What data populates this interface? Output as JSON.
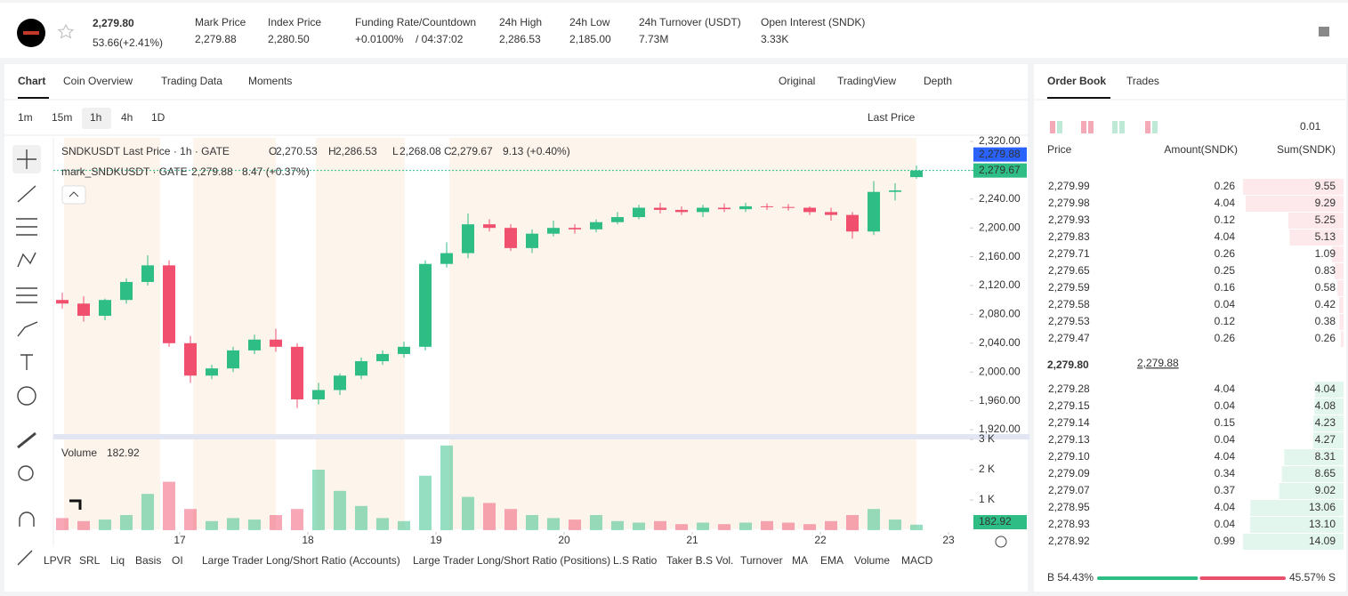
{
  "header": {
    "price": "2,279.80",
    "change": "53.66(+2.41%)",
    "stats": [
      {
        "label": "Mark Price",
        "value": "2,279.88"
      },
      {
        "label": "Index Price",
        "value": "2,280.50"
      },
      {
        "label": "Funding Rate/Countdown",
        "value": "+0.0100%",
        "extra": "/ 04:37:02"
      },
      {
        "label": "24h High",
        "value": "2,286.53"
      },
      {
        "label": "24h Low",
        "value": "2,185.00"
      },
      {
        "label": "24h Turnover (USDT)",
        "value": "7.73M"
      },
      {
        "label": "Open Interest (SNDK)",
        "value": "3.33K"
      }
    ]
  },
  "tabs": [
    "Chart",
    "Coin Overview",
    "Trading Data",
    "Moments"
  ],
  "view_tabs": [
    "Original",
    "TradingView",
    "Depth"
  ],
  "intervals": [
    "1m",
    "15m",
    "1h",
    "4h",
    "1D"
  ],
  "price_source": "Last Price",
  "indicators": [
    "LPVR",
    "SRL",
    "Liq",
    "Basis",
    "OI",
    "Large Trader Long/Short Ratio (Accounts)",
    "Large Trader Long/Short Ratio (Positions)",
    "L.S Ratio",
    "Taker B.S Vol.",
    "Turnover",
    "MA",
    "EMA",
    "Volume",
    "MACD"
  ],
  "chart_data": {
    "type": "candlestick",
    "title": "SNDKUSDT Last Price · 1h · GATE",
    "ohlc_legend": [
      {
        "key": "O",
        "value": "2,270.53"
      },
      {
        "key": "H",
        "value": "2,286.53"
      },
      {
        "key": "L",
        "value": "2,268.08"
      },
      {
        "key": "C",
        "value": "2,279.67"
      }
    ],
    "change": "9.13 (+0.40%)",
    "mark_title": "mark_SNDKUSDT · GATE",
    "mark_value": "2,279.88",
    "mark_change": "8.47 (+0.37%)",
    "x": [
      2,
      6,
      10,
      14,
      18,
      22,
      26,
      30,
      34,
      38,
      42,
      46,
      50,
      54,
      58,
      62,
      66,
      70,
      74,
      78,
      82,
      86,
      90,
      94,
      98,
      102,
      106,
      110,
      114,
      118,
      122,
      126,
      130,
      134,
      138,
      142,
      146,
      150,
      154,
      158,
      162
    ],
    "open": [
      2100,
      2095,
      2078,
      2100,
      2125,
      2148,
      2040,
      1995,
      2005,
      2030,
      2045,
      2035,
      1962,
      1975,
      1995,
      2015,
      2025,
      2035,
      2150,
      2165,
      2205,
      2200,
      2172,
      2192,
      2200,
      2198,
      2208,
      2215,
      2228,
      2225,
      2222,
      2228,
      2226,
      2230,
      2229,
      2228,
      2222,
      2218,
      2195,
      2250,
      2270.53
    ],
    "high": [
      2110,
      2105,
      2102,
      2130,
      2162,
      2155,
      2050,
      2010,
      2035,
      2052,
      2060,
      2040,
      1985,
      1998,
      2020,
      2030,
      2042,
      2155,
      2180,
      2220,
      2212,
      2205,
      2198,
      2210,
      2205,
      2212,
      2222,
      2232,
      2235,
      2230,
      2232,
      2234,
      2235,
      2234,
      2233,
      2230,
      2228,
      2222,
      2265,
      2262,
      2286.53
    ],
    "low": [
      2088,
      2070,
      2072,
      2095,
      2120,
      2035,
      1985,
      1990,
      2000,
      2025,
      2028,
      1950,
      1955,
      1968,
      1990,
      2010,
      2020,
      2030,
      2145,
      2158,
      2195,
      2168,
      2165,
      2188,
      2192,
      2194,
      2205,
      2212,
      2220,
      2218,
      2215,
      2222,
      2222,
      2225,
      2224,
      2218,
      2210,
      2185,
      2190,
      2238,
      2268.08
    ],
    "close": [
      2095,
      2078,
      2100,
      2125,
      2148,
      2040,
      1995,
      2005,
      2030,
      2045,
      2035,
      1962,
      1975,
      1995,
      2015,
      2025,
      2035,
      2150,
      2165,
      2205,
      2200,
      2172,
      2192,
      2200,
      2198,
      2208,
      2215,
      2228,
      2225,
      2222,
      2228,
      2226,
      2230,
      2229,
      2228,
      2222,
      2218,
      2195,
      2250,
      2252,
      2279.67
    ],
    "xlim": [
      0,
      172
    ],
    "xticks": [
      {
        "value": 24,
        "label": "17"
      },
      {
        "value": 48,
        "label": "18"
      },
      {
        "value": 72,
        "label": "19"
      },
      {
        "value": 96,
        "label": "20"
      },
      {
        "value": 120,
        "label": "21"
      },
      {
        "value": 144,
        "label": "22"
      },
      {
        "value": 168,
        "label": "23"
      }
    ],
    "ylim": [
      1920,
      2320
    ],
    "yticks": [
      {
        "value": 1920,
        "label": "1,920.00"
      },
      {
        "value": 1960,
        "label": "1,960.00"
      },
      {
        "value": 2000,
        "label": "2,000.00"
      },
      {
        "value": 2040,
        "label": "2,040.00"
      },
      {
        "value": 2080,
        "label": "2,080.00"
      },
      {
        "value": 2120,
        "label": "2,120.00"
      },
      {
        "value": 2160,
        "label": "2,160.00"
      },
      {
        "value": 2200,
        "label": "2,200.00"
      },
      {
        "value": 2240,
        "label": "2,240.00"
      },
      {
        "value": 2280,
        "label": "2,280.00"
      },
      {
        "value": 2320,
        "label": "2,320.00"
      }
    ],
    "last_price": {
      "value": 2279.67,
      "label": "2,279.67"
    },
    "mark_price": {
      "value": 2279.88,
      "label": "2,279.88"
    },
    "up_color": "#2ebd85",
    "down_color": "#f0506e",
    "volume": {
      "title": "Volume",
      "last": "182.92",
      "values": [
        400,
        300,
        350,
        500,
        1200,
        1600,
        700,
        300,
        400,
        350,
        500,
        700,
        2000,
        1300,
        800,
        400,
        300,
        1800,
        2800,
        1100,
        900,
        700,
        500,
        400,
        350,
        500,
        300,
        250,
        300,
        200,
        250,
        200,
        250,
        300,
        250,
        200,
        300,
        500,
        700,
        350,
        182.92
      ],
      "ylim": [
        0,
        3000
      ],
      "yticks": [
        {
          "value": 1000,
          "label": "1 K"
        },
        {
          "value": 2000,
          "label": "2 K"
        },
        {
          "value": 3000,
          "label": "3 K"
        }
      ]
    }
  },
  "order_book": {
    "title": "Order Book",
    "trades_tab": "Trades",
    "precision": "0.01",
    "columns": [
      "Price",
      "Amount(SNDK)",
      "Sum(SNDK)"
    ],
    "asks": [
      {
        "price": "2,279.99",
        "amount": 0.26,
        "sum": 9.55
      },
      {
        "price": "2,279.98",
        "amount": 4.04,
        "sum": 9.29
      },
      {
        "price": "2,279.93",
        "amount": 0.12,
        "sum": 5.25
      },
      {
        "price": "2,279.83",
        "amount": 4.04,
        "sum": 5.13
      },
      {
        "price": "2,279.71",
        "amount": 0.26,
        "sum": 1.09
      },
      {
        "price": "2,279.65",
        "amount": 0.25,
        "sum": 0.83
      },
      {
        "price": "2,279.59",
        "amount": 0.16,
        "sum": 0.58
      },
      {
        "price": "2,279.58",
        "amount": 0.04,
        "sum": 0.42
      },
      {
        "price": "2,279.53",
        "amount": 0.12,
        "sum": 0.38
      },
      {
        "price": "2,279.47",
        "amount": 0.26,
        "sum": 0.26
      }
    ],
    "mid_price": "2,279.80",
    "mid_mark": "2,279.88",
    "bids": [
      {
        "price": "2,279.28",
        "amount": 4.04,
        "sum": 4.04
      },
      {
        "price": "2,279.15",
        "amount": 0.04,
        "sum": 4.08
      },
      {
        "price": "2,279.14",
        "amount": 0.15,
        "sum": 4.23
      },
      {
        "price": "2,279.13",
        "amount": 0.04,
        "sum": 4.27
      },
      {
        "price": "2,279.10",
        "amount": 4.04,
        "sum": 8.31
      },
      {
        "price": "2,279.09",
        "amount": 0.34,
        "sum": 8.65
      },
      {
        "price": "2,279.07",
        "amount": 0.37,
        "sum": 9.02
      },
      {
        "price": "2,278.95",
        "amount": 4.04,
        "sum": 13.06
      },
      {
        "price": "2,278.93",
        "amount": 0.04,
        "sum": {
          "value": 13.1,
          "label": "13.10"
        }
      },
      {
        "price": "2,278.92",
        "amount": 0.99,
        "sum": 14.09
      }
    ],
    "ratio": {
      "buy": {
        "value": 54.43,
        "label": "B 54.43%"
      },
      "sell": {
        "value": 45.57,
        "label": "45.57% S"
      }
    }
  }
}
